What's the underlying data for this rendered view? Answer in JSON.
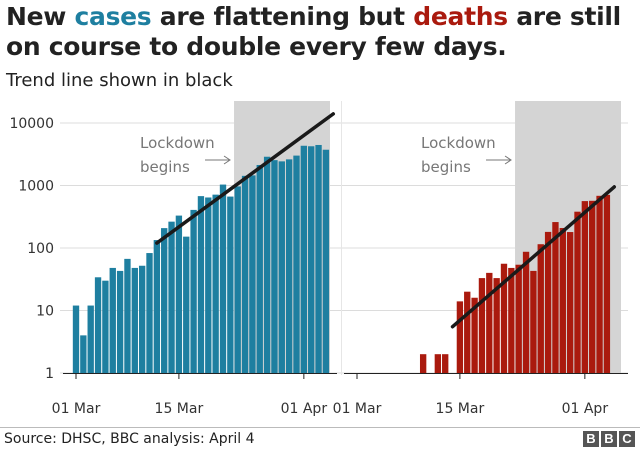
{
  "header": {
    "title_parts": [
      "New ",
      "cases",
      " are flattening but ",
      "deaths",
      " are still on course to double every few days."
    ],
    "subtitle": "Trend line shown in black"
  },
  "footer": {
    "source": "Source: DHSC, BBC analysis: April 4",
    "logo_letters": [
      "B",
      "B",
      "C"
    ]
  },
  "colors": {
    "cases": "#1e7fa0",
    "deaths": "#aa1a0e",
    "trend": "#1a1a1a",
    "lockdown_shade": "#d4d4d4",
    "annotation": "#777777"
  },
  "chart_data": [
    {
      "type": "bar",
      "name": "cases",
      "scale": "log",
      "x": [
        "2020-03-01",
        "2020-03-02",
        "2020-03-03",
        "2020-03-04",
        "2020-03-05",
        "2020-03-06",
        "2020-03-07",
        "2020-03-08",
        "2020-03-09",
        "2020-03-10",
        "2020-03-11",
        "2020-03-12",
        "2020-03-13",
        "2020-03-14",
        "2020-03-15",
        "2020-03-16",
        "2020-03-17",
        "2020-03-18",
        "2020-03-19",
        "2020-03-20",
        "2020-03-21",
        "2020-03-22",
        "2020-03-23",
        "2020-03-24",
        "2020-03-25",
        "2020-03-26",
        "2020-03-27",
        "2020-03-28",
        "2020-03-29",
        "2020-03-30",
        "2020-03-31",
        "2020-04-01",
        "2020-04-02",
        "2020-04-03",
        "2020-04-04"
      ],
      "values": [
        12,
        4,
        12,
        34,
        30,
        48,
        43,
        67,
        48,
        52,
        83,
        134,
        208,
        264,
        330,
        152,
        407,
        676,
        643,
        714,
        1035,
        665,
        967,
        1427,
        1452,
        2129,
        2885,
        2546,
        2433,
        2619,
        3009,
        4324,
        4244,
        4450,
        3735
      ],
      "yticks": [
        "1",
        "10",
        "100",
        "1000",
        "10000"
      ],
      "xticks": [
        "01 Mar",
        "15 Mar",
        "01 Apr"
      ],
      "trend_line": [
        {
          "x": "2020-03-12",
          "y": 120
        },
        {
          "x": "2020-04-05",
          "y": 14000
        }
      ],
      "lockdown_start": "2020-03-23",
      "annotation": {
        "lines": [
          "Lockdown",
          "begins"
        ]
      }
    },
    {
      "type": "bar",
      "name": "deaths",
      "scale": "log",
      "x": [
        "2020-03-01",
        "2020-03-02",
        "2020-03-03",
        "2020-03-04",
        "2020-03-05",
        "2020-03-06",
        "2020-03-07",
        "2020-03-08",
        "2020-03-09",
        "2020-03-10",
        "2020-03-11",
        "2020-03-12",
        "2020-03-13",
        "2020-03-14",
        "2020-03-15",
        "2020-03-16",
        "2020-03-17",
        "2020-03-18",
        "2020-03-19",
        "2020-03-20",
        "2020-03-21",
        "2020-03-22",
        "2020-03-23",
        "2020-03-24",
        "2020-03-25",
        "2020-03-26",
        "2020-03-27",
        "2020-03-28",
        "2020-03-29",
        "2020-03-30",
        "2020-03-31",
        "2020-04-01",
        "2020-04-02",
        "2020-04-03",
        "2020-04-04"
      ],
      "values": [
        0,
        0,
        0,
        0,
        0,
        0,
        0,
        0,
        0,
        2,
        0,
        2,
        2,
        0,
        14,
        20,
        16,
        33,
        40,
        33,
        56,
        48,
        54,
        87,
        43,
        115,
        181,
        260,
        209,
        180,
        381,
        563,
        569,
        684,
        708
      ],
      "yticks": [
        "1",
        "10",
        "100",
        "1000",
        "10000"
      ],
      "xticks": [
        "01 Mar",
        "15 Mar",
        "01 Apr"
      ],
      "trend_line": [
        {
          "x": "2020-03-14",
          "y": 5.5
        },
        {
          "x": "2020-04-05",
          "y": 950
        }
      ],
      "lockdown_start": "2020-03-23",
      "annotation": {
        "lines": [
          "Lockdown",
          "begins"
        ]
      }
    }
  ]
}
